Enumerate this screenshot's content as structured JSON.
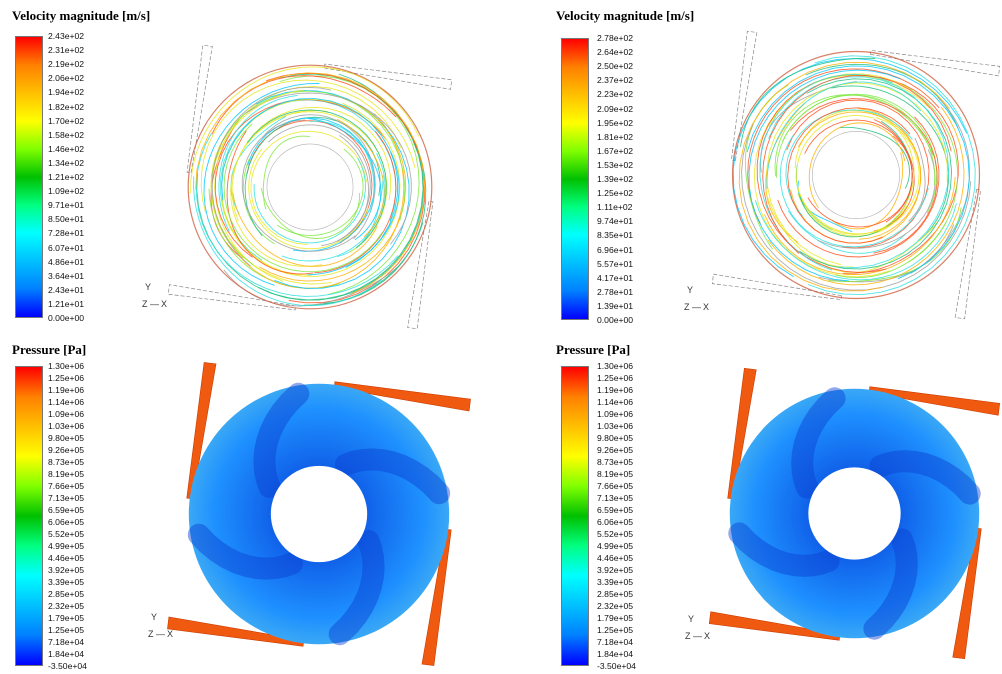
{
  "panels": [
    {
      "title": "Velocity magnitude [m/s]",
      "kind": "velocity",
      "ticks": [
        "2.43e+02",
        "2.31e+02",
        "2.19e+02",
        "2.06e+02",
        "1.94e+02",
        "1.82e+02",
        "1.70e+02",
        "1.58e+02",
        "1.46e+02",
        "1.34e+02",
        "1.21e+02",
        "1.09e+02",
        "9.71e+01",
        "8.50e+01",
        "7.28e+01",
        "6.07e+01",
        "4.86e+01",
        "3.64e+01",
        "2.43e+01",
        "1.21e+01",
        "0.00e+00"
      ]
    },
    {
      "title": "Velocity magnitude [m/s]",
      "kind": "velocity",
      "ticks": [
        "2.78e+02",
        "2.64e+02",
        "2.50e+02",
        "2.37e+02",
        "2.23e+02",
        "2.09e+02",
        "1.95e+02",
        "1.81e+02",
        "1.67e+02",
        "1.53e+02",
        "1.39e+02",
        "1.25e+02",
        "1.11e+02",
        "9.74e+01",
        "8.35e+01",
        "6.96e+01",
        "5.57e+01",
        "4.17e+01",
        "2.78e+01",
        "1.39e+01",
        "0.00e+00"
      ]
    },
    {
      "title": "Pressure [Pa]",
      "kind": "pressure",
      "ticks": [
        "1.30e+06",
        "1.25e+06",
        "1.19e+06",
        "1.14e+06",
        "1.09e+06",
        "1.03e+06",
        "9.80e+05",
        "9.26e+05",
        "8.73e+05",
        "8.19e+05",
        "7.66e+05",
        "7.13e+05",
        "6.59e+05",
        "6.06e+05",
        "5.52e+05",
        "4.99e+05",
        "4.46e+05",
        "3.92e+05",
        "3.39e+05",
        "2.85e+05",
        "2.32e+05",
        "1.79e+05",
        "1.25e+05",
        "7.18e+04",
        "1.84e+04",
        "-3.50e+04"
      ]
    },
    {
      "title": "Pressure [Pa]",
      "kind": "pressure",
      "ticks": [
        "1.30e+06",
        "1.25e+06",
        "1.19e+06",
        "1.14e+06",
        "1.09e+06",
        "1.03e+06",
        "9.80e+05",
        "9.26e+05",
        "8.73e+05",
        "8.19e+05",
        "7.66e+05",
        "7.13e+05",
        "6.59e+05",
        "6.06e+05",
        "5.52e+05",
        "4.99e+05",
        "4.46e+05",
        "3.92e+05",
        "3.39e+05",
        "2.85e+05",
        "2.32e+05",
        "1.79e+05",
        "1.25e+05",
        "7.18e+04",
        "1.84e+04",
        "-3.50e+04"
      ]
    }
  ],
  "axis_labels": {
    "y": "Y",
    "z": "Z",
    "x": "X"
  },
  "colormap": [
    "#0000ff",
    "#0080ff",
    "#00c0ff",
    "#00ffff",
    "#00ff80",
    "#00c000",
    "#80ff00",
    "#ffff00",
    "#ffc000",
    "#ff8000",
    "#ff0000"
  ]
}
